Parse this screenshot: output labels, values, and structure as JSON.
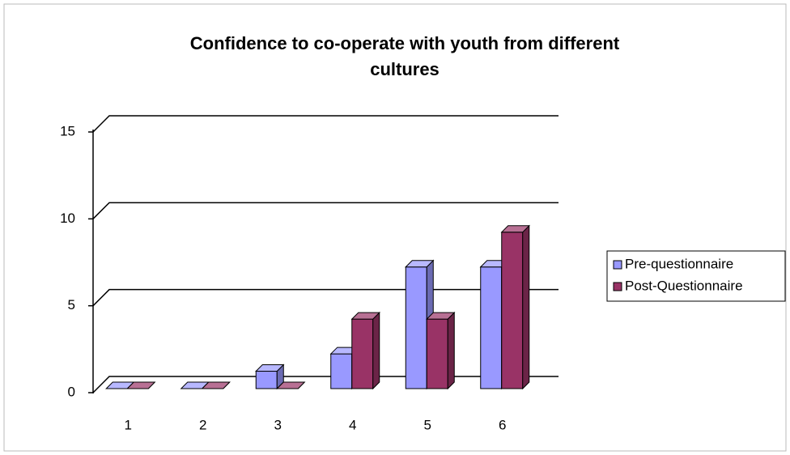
{
  "chart_data": {
    "type": "bar3d",
    "title": "Confidence to co-operate with youth from different cultures",
    "categories": [
      "1",
      "2",
      "3",
      "4",
      "5",
      "6"
    ],
    "series": [
      {
        "name": "Pre-questionnaire",
        "color": "#9999ff",
        "values": [
          0,
          0,
          1,
          2,
          7,
          7
        ]
      },
      {
        "name": "Post-Questionnaire",
        "color": "#993366",
        "values": [
          0,
          0,
          0,
          4,
          4,
          9
        ]
      }
    ],
    "ylim": [
      0,
      15
    ],
    "yticks": [
      0,
      5,
      10,
      15
    ],
    "grid": true,
    "legend": "right"
  }
}
